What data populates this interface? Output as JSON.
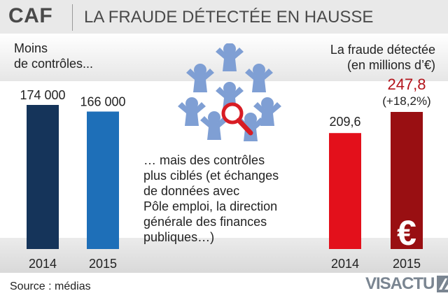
{
  "header": {
    "brand": "CAF",
    "headline": "LA FRAUDE DÉTECTÉE EN HAUSSE"
  },
  "left_label": [
    "Moins",
    "de contrôles..."
  ],
  "right_label": [
    "La fraude détectée",
    "(en millions d’€)"
  ],
  "middle_text": [
    "… mais des contrôles",
    "plus ciblés (et échanges",
    "de données avec",
    "Pôle emploi, la direction",
    "générale des finances",
    "publiques…)"
  ],
  "footer": {
    "source": "Source : médias",
    "logo_text": "VISACTU"
  },
  "colors": {
    "controls_2014": "#15345a",
    "controls_2015": "#1e6fb8",
    "fraud_2014": "#e3101b",
    "fraud_2015": "#990f12",
    "fraud_value_accent": "#b3141b",
    "icon_blue": "#7f9fd4"
  },
  "icons": [
    "people-network-icon",
    "magnifier-icon",
    "euro-icon"
  ],
  "chart_data": [
    {
      "type": "bar",
      "title": "",
      "categories": [
        "2014",
        "2015"
      ],
      "values": [
        174000,
        166000
      ],
      "value_labels": [
        "174 000",
        "166 000"
      ],
      "ylim": [
        0,
        174000
      ]
    },
    {
      "type": "bar",
      "title": "",
      "categories": [
        "2014",
        "2015"
      ],
      "values": [
        209.6,
        247.8
      ],
      "value_labels": [
        "209,6",
        "247,8"
      ],
      "annotation": "(+18,2%)",
      "ylim": [
        0,
        247.8
      ]
    }
  ]
}
